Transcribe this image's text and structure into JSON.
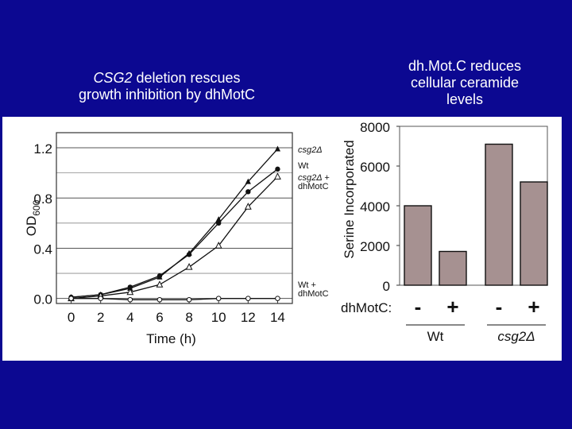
{
  "slide": {
    "left_title_italic": "CSG2",
    "left_title_rest": " deletion rescues",
    "left_title_line2": "growth inhibition by dhMotC",
    "right_title_line1": "dh.Mot.C reduces",
    "right_title_line2": "cellular ceramide",
    "right_title_line3": "levels"
  },
  "chart_data": [
    {
      "type": "line",
      "title": "",
      "xlabel": "Time (h)",
      "ylabel": "OD600",
      "ylabel_main": "OD",
      "ylabel_sub": "600",
      "xlim": [
        -1,
        15
      ],
      "ylim": [
        -0.04,
        1.32
      ],
      "x_ticks": [
        0,
        2,
        4,
        6,
        8,
        10,
        12,
        14
      ],
      "x_tick_labels": [
        "0",
        "2",
        "4",
        "6",
        "8",
        "10",
        "12",
        "14"
      ],
      "y_ticks": [
        0.0,
        0.4,
        0.8,
        1.2
      ],
      "y_tick_labels": [
        "0.0",
        "0.4",
        "0.8",
        "1.2"
      ],
      "x": [
        0,
        2,
        4,
        6,
        8,
        10,
        12,
        14
      ],
      "series": [
        {
          "name": "csg2Δ",
          "label_lines": [
            "csg2Δ"
          ],
          "italic": true,
          "marker": "filled-triangle",
          "values": [
            0.01,
            0.03,
            0.08,
            0.17,
            0.36,
            0.63,
            0.93,
            1.19
          ]
        },
        {
          "name": "Wt",
          "label_lines": [
            "Wt"
          ],
          "italic": false,
          "marker": "filled-circle",
          "values": [
            0.01,
            0.03,
            0.09,
            0.18,
            0.35,
            0.6,
            0.85,
            1.03
          ]
        },
        {
          "name": "csg2Δ + dhMotC",
          "label_lines": [
            "csg2Δ +",
            "dhMotC"
          ],
          "italic": true,
          "marker": "open-triangle",
          "values": [
            0.0,
            0.02,
            0.05,
            0.11,
            0.25,
            0.42,
            0.73,
            0.97
          ]
        },
        {
          "name": "Wt + dhMotC",
          "label_lines": [
            "Wt +",
            "dhMotC"
          ],
          "italic": false,
          "marker": "open-circle",
          "values": [
            0.0,
            0.0,
            -0.01,
            -0.01,
            -0.01,
            0.0,
            0.0,
            0.0
          ]
        }
      ]
    },
    {
      "type": "bar",
      "title": "",
      "ylabel": "Serine Incorporated",
      "ylim": [
        0,
        8000
      ],
      "y_ticks": [
        0,
        2000,
        4000,
        6000,
        8000
      ],
      "y_tick_labels": [
        "0",
        "2000",
        "4000",
        "6000",
        "8000"
      ],
      "categories": [
        "-",
        "+",
        "-",
        "+"
      ],
      "values": [
        4000,
        1700,
        7100,
        5200
      ],
      "row_label": "dhMotC:",
      "groups": [
        {
          "label": "Wt",
          "italic": false,
          "span": [
            0,
            1
          ]
        },
        {
          "label": "csg2Δ",
          "italic": true,
          "span": [
            2,
            3
          ]
        }
      ],
      "bar_color": "#a69191"
    }
  ]
}
